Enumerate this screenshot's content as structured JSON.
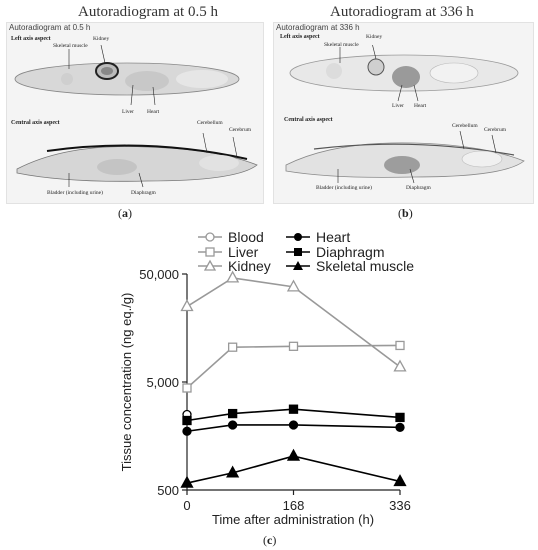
{
  "panel_a": {
    "title": "Autoradiogram at 0.5 h",
    "small_label": "Autoradiogram at 0.5 h",
    "left_aspect": "Left axis aspect",
    "central_aspect": "Central axis aspect",
    "labels": {
      "skeletal_muscle": "Skeletal muscle",
      "kidney": "Kidney",
      "liver": "Liver",
      "heart": "Heart",
      "cerebellum": "Cerebellum",
      "cerebrum": "Cerebrum",
      "bladder": "Bladder (including urine)",
      "diaphragm": "Diaphragm"
    },
    "caption_letter": "a"
  },
  "panel_b": {
    "title": "Autoradiogram at 336 h",
    "small_label": "Autoradiogram at 336 h",
    "left_aspect": "Left axis aspect",
    "central_aspect": "Central axis aspect",
    "labels": {
      "skeletal_muscle": "Skeletal muscle",
      "kidney": "Kidney",
      "liver": "Liver",
      "heart": "Heart",
      "cerebellum": "Cerebellum",
      "cerebrum": "Cerebrum",
      "bladder": "Bladder (including urine)",
      "diaphragm": "Diaphragm"
    },
    "caption_letter": "b"
  },
  "panel_c_caption_letter": "c",
  "chart_data": {
    "type": "line",
    "xlabel": "Time after administration (h)",
    "ylabel": "Tissue concentration (ng eq./g)",
    "x_ticks": [
      "0",
      "168",
      "336"
    ],
    "y_ticks": [
      "500",
      "5,000",
      "50,000"
    ],
    "y_scale": "log",
    "ylim": [
      500,
      50000
    ],
    "xlim": [
      0,
      336
    ],
    "legend_placement": "top",
    "series": [
      {
        "name": "Blood",
        "marker": "open-circle",
        "color": "#000000",
        "points": [
          [
            0,
            2500
          ]
        ]
      },
      {
        "name": "Liver",
        "marker": "open-square",
        "color": "#999999",
        "points": [
          [
            0,
            4400
          ],
          [
            72,
            10500
          ],
          [
            168,
            10700
          ],
          [
            336,
            10900
          ]
        ]
      },
      {
        "name": "Kidney",
        "marker": "open-triangle",
        "color": "#999999",
        "points": [
          [
            0,
            25000
          ],
          [
            72,
            46000
          ],
          [
            168,
            38000
          ],
          [
            336,
            6900
          ]
        ]
      },
      {
        "name": "Heart",
        "marker": "filled-circle",
        "color": "#000000",
        "points": [
          [
            0,
            1750
          ],
          [
            72,
            2000
          ],
          [
            168,
            2000
          ],
          [
            336,
            1900
          ]
        ]
      },
      {
        "name": "Diaphragm",
        "marker": "filled-square",
        "color": "#000000",
        "points": [
          [
            0,
            2200
          ],
          [
            72,
            2550
          ],
          [
            168,
            2800
          ],
          [
            336,
            2350
          ]
        ]
      },
      {
        "name": "Skeletal muscle",
        "marker": "filled-triangle",
        "color": "#000000",
        "points": [
          [
            0,
            580
          ],
          [
            72,
            720
          ],
          [
            168,
            1030
          ],
          [
            336,
            600
          ]
        ]
      }
    ]
  }
}
